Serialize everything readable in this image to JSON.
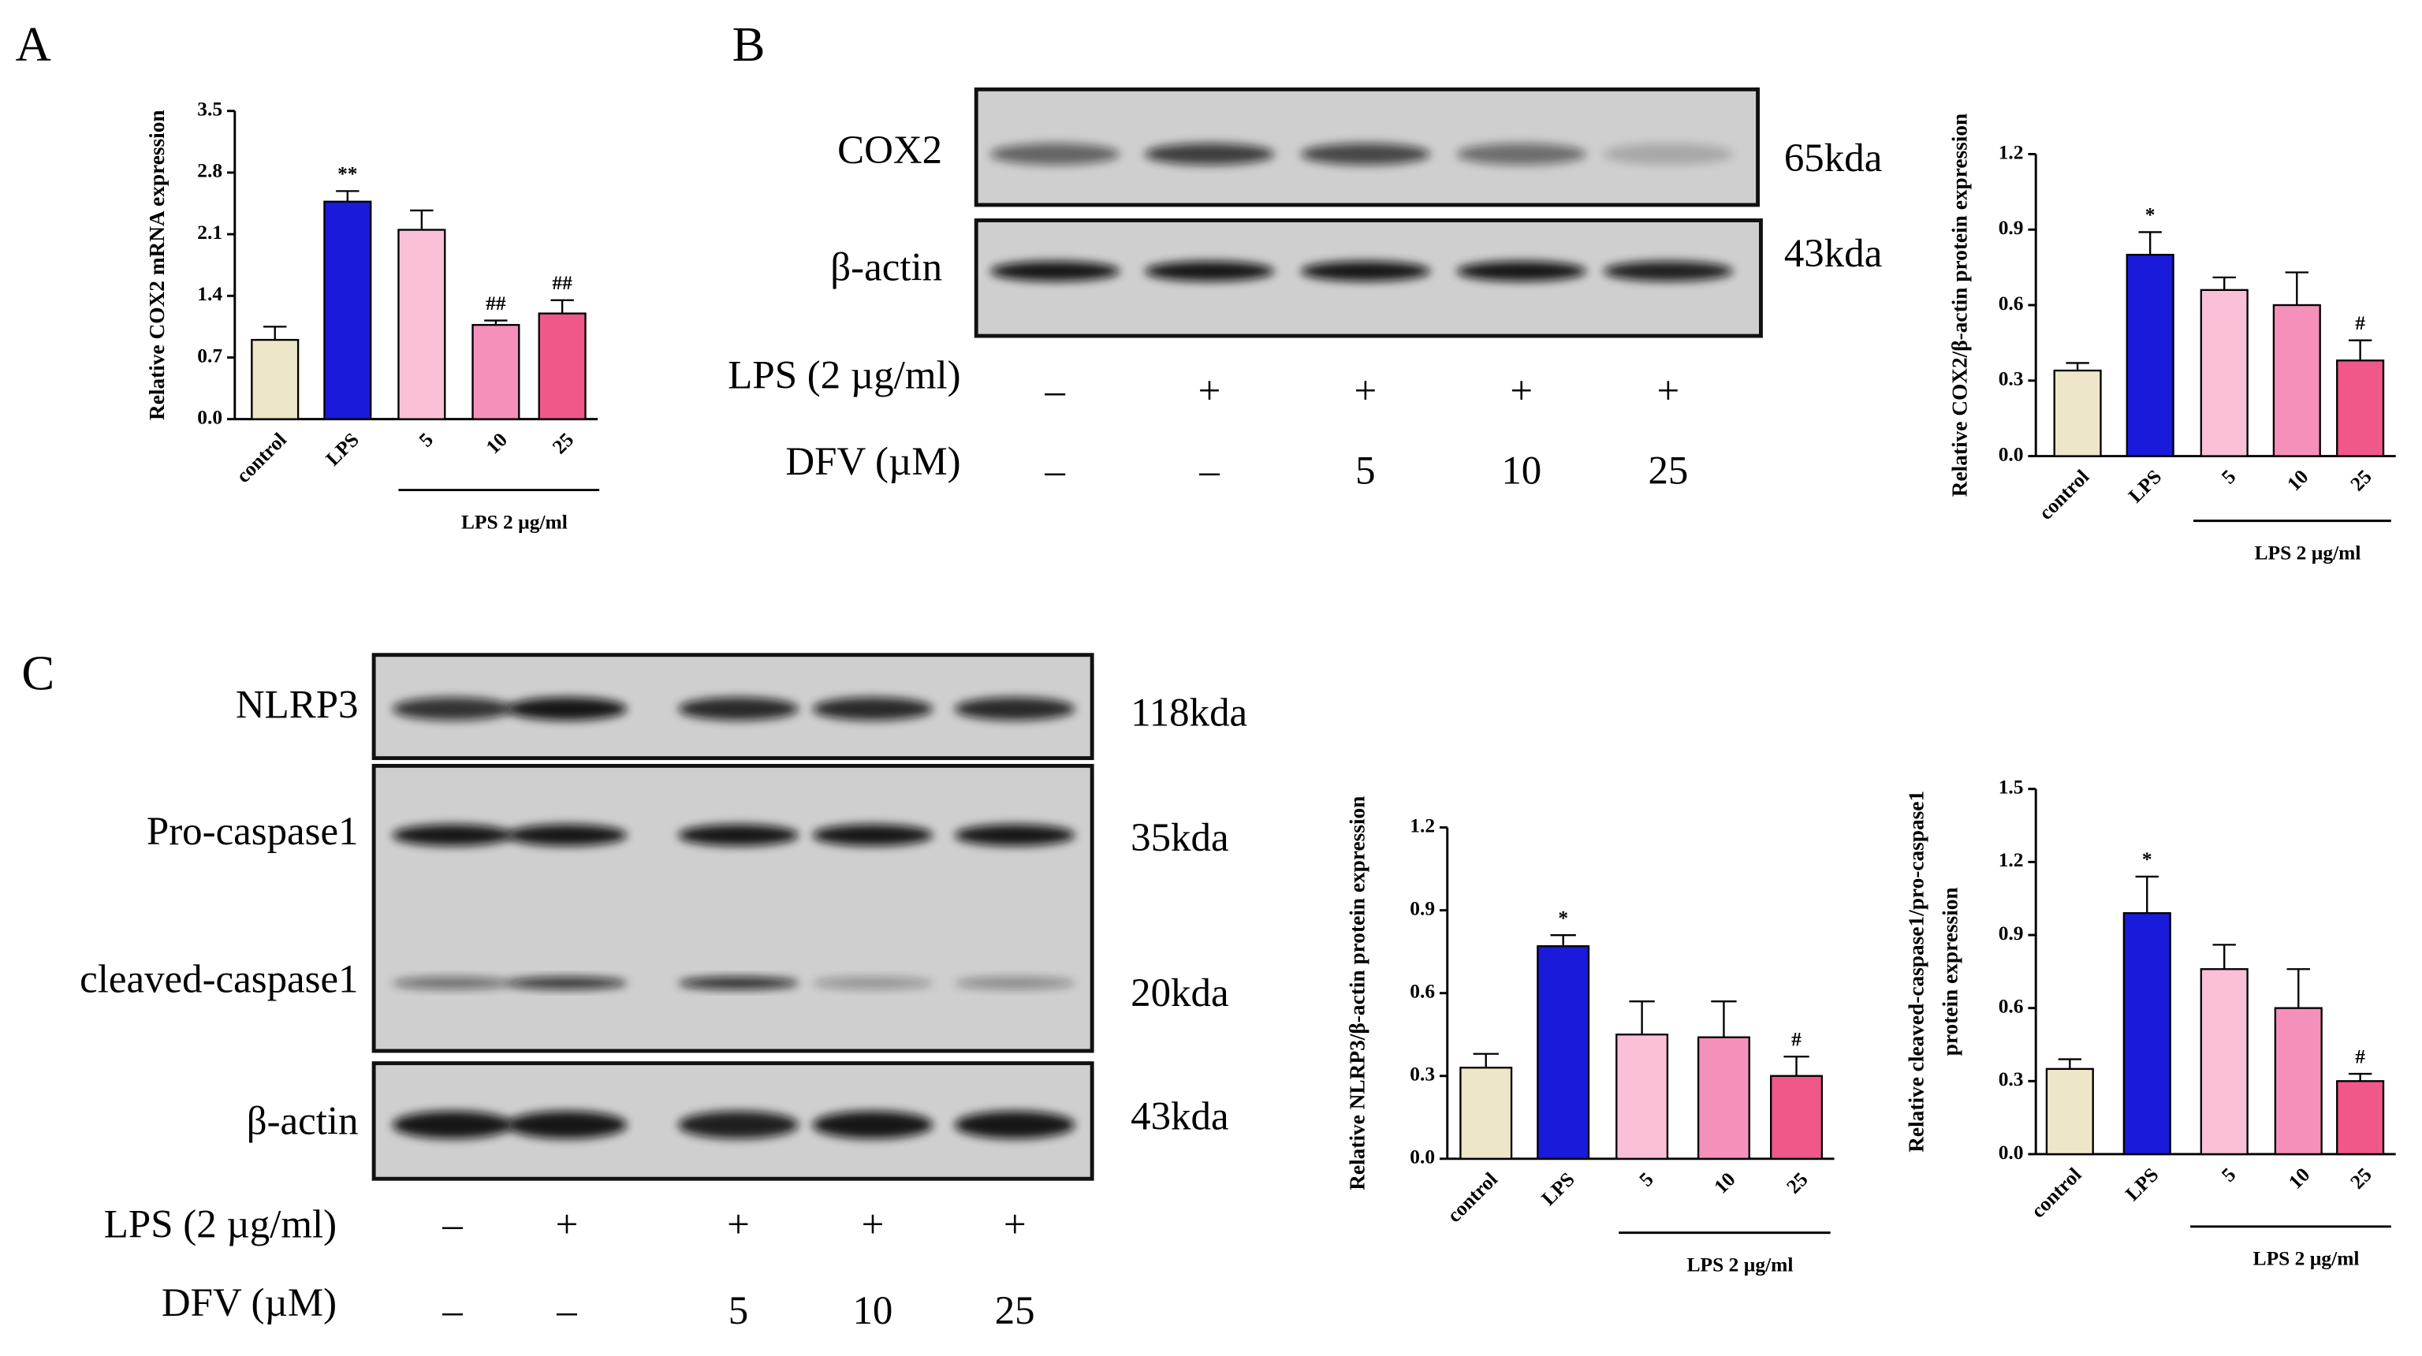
{
  "panels": [
    "A",
    "B",
    "C"
  ],
  "chart_data": [
    {
      "type": "bar",
      "y_label": "Relative COX2 mRNA expression",
      "categories": [
        "control",
        "LPS",
        "5",
        "10",
        "25"
      ],
      "values": [
        0.9,
        2.47,
        2.15,
        1.07,
        1.2
      ],
      "errors": [
        0.15,
        0.12,
        0.22,
        0.05,
        0.15
      ],
      "annotations": [
        null,
        "**",
        null,
        "##",
        "##"
      ],
      "colors": [
        "#ede6c8",
        "#1a1adb",
        "#f9c0d8",
        "#f590bb",
        "#f0588a"
      ],
      "ylim": [
        0,
        3.5
      ],
      "yticks": [
        {
          "value": 0,
          "label": "0.0"
        },
        0.7,
        1.4,
        2.1,
        2.8,
        3.5
      ],
      "group_label": "LPS 2 µg/ml"
    },
    {
      "type": "bar",
      "y_label": "Relative COX2/β-actin protein expression",
      "categories": [
        "control",
        "LPS",
        "5",
        "10",
        "25"
      ],
      "values": [
        0.34,
        0.8,
        0.66,
        0.6,
        0.38
      ],
      "errors": [
        0.03,
        0.09,
        0.05,
        0.13,
        0.08
      ],
      "annotations": [
        null,
        "*",
        null,
        null,
        "#"
      ],
      "colors": [
        "#ede6c8",
        "#1a1adb",
        "#f9c0d8",
        "#f590bb",
        "#f0588a"
      ],
      "ylim": [
        0,
        1.2
      ],
      "yticks": [
        {
          "value": 0,
          "label": "0.0"
        },
        0.3,
        0.6,
        0.9,
        1.2
      ],
      "group_label": "LPS 2 µg/ml"
    },
    {
      "type": "bar",
      "y_label": "Relative NLRP3/β-actin protein expression",
      "categories": [
        "control",
        "LPS",
        "5",
        "10",
        "25"
      ],
      "values": [
        0.33,
        0.77,
        0.45,
        0.44,
        0.3
      ],
      "errors": [
        0.05,
        0.04,
        0.12,
        0.13,
        0.07
      ],
      "annotations": [
        null,
        "*",
        null,
        null,
        "#"
      ],
      "colors": [
        "#ede6c8",
        "#1a1adb",
        "#f9c0d8",
        "#f590bb",
        "#f0588a"
      ],
      "ylim": [
        0,
        1.2
      ],
      "yticks": [
        {
          "value": 0,
          "label": "0.0"
        },
        0.3,
        0.6,
        0.9,
        1.2
      ],
      "group_label": "LPS 2 µg/ml"
    },
    {
      "type": "bar",
      "y_label": [
        "Relative cleaved-caspase1/pro-caspase1",
        "protein expression"
      ],
      "categories": [
        "control",
        "LPS",
        "5",
        "10",
        "25"
      ],
      "values": [
        0.35,
        0.99,
        0.76,
        0.6,
        0.3
      ],
      "errors": [
        0.04,
        0.15,
        0.1,
        0.16,
        0.03
      ],
      "annotations": [
        null,
        "*",
        null,
        null,
        "#"
      ],
      "colors": [
        "#ede6c8",
        "#1a1adb",
        "#f9c0d8",
        "#f590bb",
        "#f0588a"
      ],
      "ylim": [
        0,
        1.5
      ],
      "yticks": [
        {
          "value": 0,
          "label": "0.0"
        },
        0.3,
        0.6,
        0.9,
        1.2,
        1.5
      ],
      "group_label": "LPS 2 µg/ml"
    }
  ],
  "blots": [
    {
      "rows": [
        {
          "protein": "COX2",
          "size": "65kda"
        },
        {
          "protein": "β-actin",
          "size": "43kda"
        }
      ],
      "treatments": [
        {
          "label": "LPS (2 µg/ml)",
          "values": [
            "–",
            "+",
            "+",
            "+",
            "+"
          ]
        },
        {
          "label": "DFV (µM)",
          "values": [
            "–",
            "–",
            "5",
            "10",
            "25"
          ]
        }
      ]
    },
    {
      "rows": [
        {
          "protein": "NLRP3",
          "size": "118kda"
        },
        {
          "protein": "Pro-caspase1",
          "size": "35kda"
        },
        {
          "protein": "cleaved-caspase1",
          "size": "20kda"
        },
        {
          "protein": "β-actin",
          "size": "43kda"
        }
      ],
      "treatments": [
        {
          "label": "LPS (2 µg/ml)",
          "values": [
            "–",
            "+",
            "+",
            "+",
            "+"
          ]
        },
        {
          "label": "DFV (µM)",
          "values": [
            "–",
            "–",
            "5",
            "10",
            "25"
          ]
        }
      ]
    }
  ]
}
